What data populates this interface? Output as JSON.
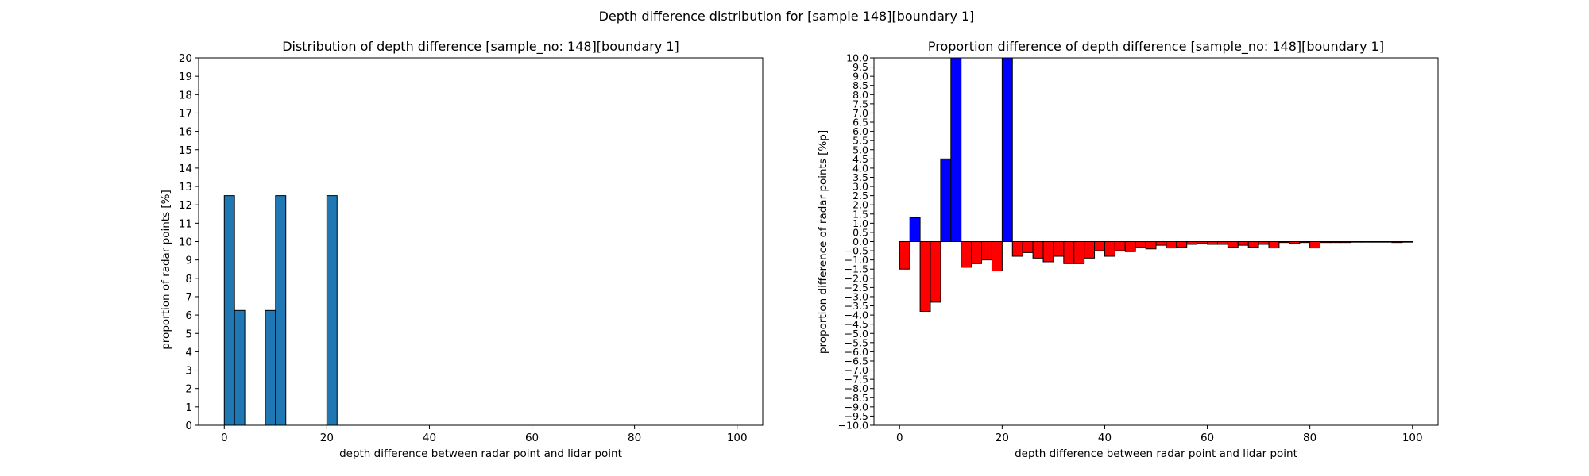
{
  "suptitle": "Depth difference distribution for [sample 148][boundary 1]",
  "chart_data": [
    {
      "type": "bar",
      "title": "Distribution of depth difference [sample_no: 148][boundary 1]",
      "xlabel": "depth difference between radar point and lidar point",
      "ylabel": "proportion of radar points [%]",
      "xlim": [
        -5,
        105
      ],
      "ylim": [
        0,
        20
      ],
      "xticks": [
        0,
        20,
        40,
        60,
        80,
        100
      ],
      "yticks": [
        0,
        1,
        2,
        3,
        4,
        5,
        6,
        7,
        8,
        9,
        10,
        11,
        12,
        13,
        14,
        15,
        16,
        17,
        18,
        19,
        20
      ],
      "bin_width": 2,
      "bars": [
        {
          "x": 0,
          "value": 12.5
        },
        {
          "x": 2,
          "value": 6.25
        },
        {
          "x": 8,
          "value": 6.25
        },
        {
          "x": 10,
          "value": 12.5
        },
        {
          "x": 20,
          "value": 12.5
        }
      ],
      "bar_color": "#1f77b4",
      "edge_color": "#000000"
    },
    {
      "type": "bar",
      "title": "Proportion difference of depth difference [sample_no: 148][boundary 1]",
      "xlabel": "depth difference between radar point and lidar point",
      "ylabel": "proportion difference of radar points [%p]",
      "xlim": [
        -5,
        105
      ],
      "ylim": [
        -10,
        10
      ],
      "xticks": [
        0,
        20,
        40,
        60,
        80,
        100
      ],
      "ytick_step": 0.5,
      "bin_width": 2,
      "positive_color": "#0000ff",
      "negative_color": "#ff0000",
      "edge_color": "#000000",
      "values": [
        -1.5,
        1.3,
        -3.8,
        -3.3,
        4.5,
        10.0,
        -1.4,
        -1.2,
        -1.0,
        -1.6,
        10.0,
        -0.8,
        -0.6,
        -0.9,
        -1.1,
        -0.8,
        -1.2,
        -1.2,
        -0.9,
        -0.5,
        -0.8,
        -0.5,
        -0.55,
        -0.3,
        -0.4,
        -0.2,
        -0.35,
        -0.3,
        -0.15,
        -0.1,
        -0.15,
        -0.15,
        -0.3,
        -0.2,
        -0.3,
        -0.15,
        -0.35,
        -0.05,
        -0.1,
        -0.05,
        -0.35,
        -0.05,
        -0.05,
        -0.05,
        -0.03,
        -0.03,
        -0.03,
        -0.03,
        -0.05,
        -0.03
      ]
    }
  ]
}
